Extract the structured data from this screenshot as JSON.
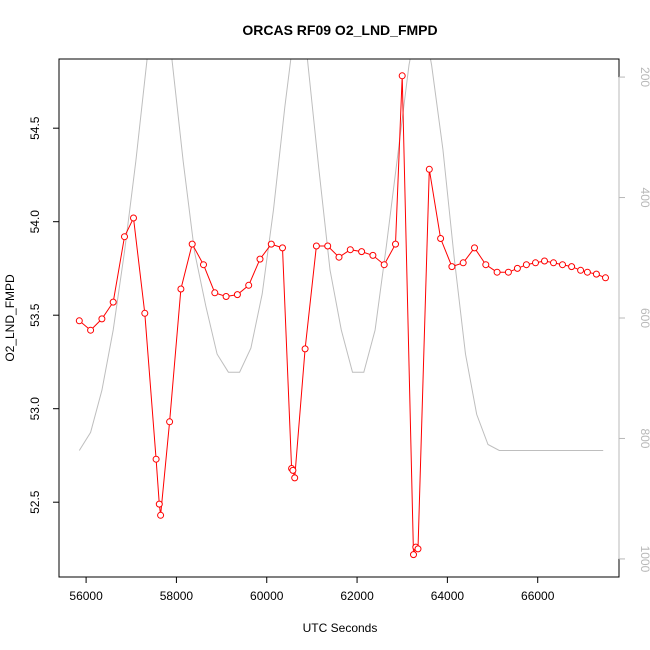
{
  "chart_data": {
    "type": "line",
    "title": "ORCAS RF09 O2_LND_FMPD",
    "xlabel": "UTC Seconds",
    "ylabel": "O2_LND_FMPD",
    "xlim": [
      55400,
      67800
    ],
    "ylim": [
      52.1,
      54.87
    ],
    "y2lim": [
      1030,
      170
    ],
    "x_ticks": [
      56000,
      58000,
      60000,
      62000,
      64000,
      66000
    ],
    "x_tick_labels": [
      "56000",
      "58000",
      "60000",
      "62000",
      "64000",
      "66000"
    ],
    "y_ticks": [
      52.5,
      53.0,
      53.5,
      54.0,
      54.5
    ],
    "y_tick_labels": [
      "52.5",
      "53.0",
      "53.5",
      "54.0",
      "54.5"
    ],
    "y2_ticks": [
      200,
      400,
      600,
      800,
      1000
    ],
    "y2_tick_labels": [
      "200",
      "400",
      "600",
      "800",
      "1000"
    ],
    "legend": "none",
    "grid": false,
    "colors": {
      "primary": "#ff0000",
      "secondary": "#bebebe",
      "frame": "#000000"
    },
    "series": [
      {
        "axis": "left",
        "style": "line+points",
        "color": "#ff0000",
        "x": [
          55850,
          56100,
          56350,
          56600,
          56850,
          57050,
          57300,
          57550,
          57620,
          57650,
          57850,
          58100,
          58350,
          58600,
          58850,
          59100,
          59350,
          59600,
          59850,
          60100,
          60350,
          60550,
          60580,
          60620,
          60850,
          61100,
          61350,
          61600,
          61850,
          62100,
          62350,
          62600,
          62850,
          63000,
          63250,
          63300,
          63350,
          63600,
          63850,
          64100,
          64350,
          64600,
          64850,
          65100,
          65350,
          65550,
          65750,
          65950,
          66150,
          66350,
          66550,
          66750,
          66950,
          67100,
          67300,
          67500
        ],
        "y": [
          53.47,
          53.42,
          53.48,
          53.57,
          53.92,
          54.02,
          53.51,
          52.73,
          52.49,
          52.43,
          52.93,
          53.64,
          53.88,
          53.77,
          53.62,
          53.6,
          53.61,
          53.66,
          53.8,
          53.88,
          53.86,
          52.68,
          52.67,
          52.63,
          53.32,
          53.87,
          53.87,
          53.81,
          53.85,
          53.84,
          53.82,
          53.77,
          53.88,
          54.78,
          52.22,
          52.26,
          52.25,
          54.28,
          53.91,
          53.76,
          53.78,
          53.86,
          53.77,
          53.73,
          53.73,
          53.75,
          53.77,
          53.78,
          53.79,
          53.78,
          53.77,
          53.76,
          53.74,
          53.73,
          53.72,
          53.7
        ]
      },
      {
        "axis": "right",
        "style": "line",
        "color": "#bebebe",
        "x": [
          55850,
          56100,
          56350,
          56600,
          56850,
          57100,
          57350,
          57500,
          57650,
          57900,
          58150,
          58400,
          58650,
          58900,
          59150,
          59400,
          59650,
          59900,
          60150,
          60400,
          60650,
          60900,
          61150,
          61400,
          61650,
          61900,
          62150,
          62400,
          62650,
          62900,
          63150,
          63400,
          63650,
          63900,
          64150,
          64400,
          64650,
          64900,
          65150,
          65400,
          65650,
          65900,
          66150,
          66400,
          66650,
          66900,
          67150,
          67450
        ],
        "y": [
          820,
          790,
          720,
          620,
          490,
          340,
          170,
          80,
          80,
          170,
          340,
          490,
          580,
          660,
          690,
          690,
          650,
          560,
          420,
          250,
          100,
          170,
          350,
          520,
          620,
          690,
          690,
          620,
          480,
          330,
          180,
          80,
          180,
          320,
          500,
          660,
          760,
          810,
          820,
          820,
          820,
          820,
          820,
          820,
          820,
          820,
          820,
          820
        ]
      }
    ]
  }
}
